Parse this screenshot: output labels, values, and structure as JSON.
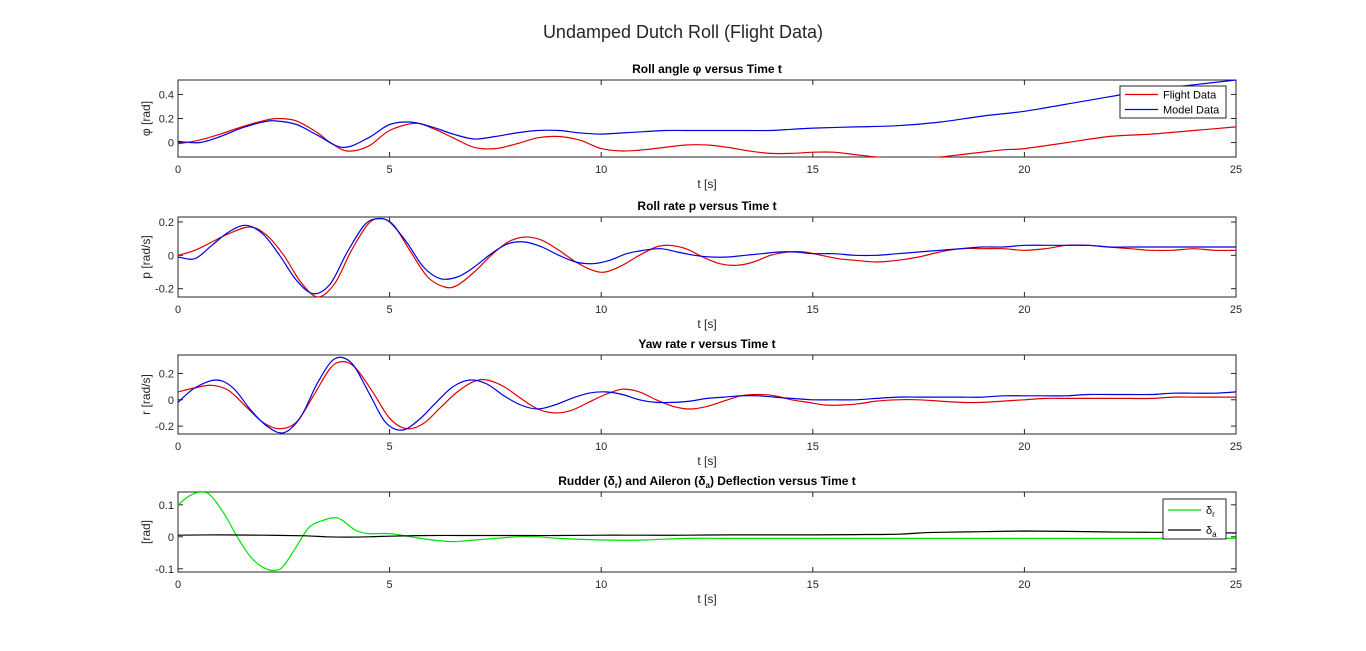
{
  "figure_title": "Undamped Dutch Roll (Flight Data)",
  "colors": {
    "flight": "#e00000",
    "model": "#0000e0",
    "rudder": "#00e000",
    "aileron": "#000000"
  },
  "chart_data": [
    {
      "type": "line",
      "title": "Roll angle φ versus Time t",
      "xlabel": "t [s]",
      "ylabel": "φ [rad]",
      "xlim": [
        0,
        25
      ],
      "ylim": [
        -0.12,
        0.52
      ],
      "xticks": [
        0,
        5,
        10,
        15,
        20,
        25
      ],
      "yticks": [
        -0.0,
        0.2,
        0.4
      ],
      "ytick_labels": [
        "0",
        "0.2",
        "0.4"
      ],
      "legend": "top-right",
      "series": [
        {
          "name": "Flight Data",
          "color": "#e00000",
          "x": [
            0,
            0.5,
            1,
            1.5,
            2,
            2.35,
            2.8,
            3.3,
            3.6,
            4,
            4.5,
            5,
            5.6,
            6,
            6.5,
            7,
            7.5,
            8,
            8.5,
            9,
            9.5,
            10,
            10.5,
            11,
            11.5,
            12,
            12.5,
            13,
            13.5,
            14,
            14.5,
            15,
            15.5,
            16,
            16.5,
            17,
            17.5,
            18,
            18.5,
            19,
            19.5,
            20,
            21,
            22,
            23,
            24,
            25
          ],
          "y": [
            -0.01,
            0.02,
            0.07,
            0.13,
            0.18,
            0.2,
            0.18,
            0.08,
            0.0,
            -0.07,
            -0.03,
            0.1,
            0.16,
            0.12,
            0.04,
            -0.04,
            -0.05,
            -0.01,
            0.04,
            0.05,
            0.02,
            -0.05,
            -0.07,
            -0.06,
            -0.04,
            -0.02,
            -0.02,
            -0.04,
            -0.07,
            -0.09,
            -0.09,
            -0.08,
            -0.08,
            -0.1,
            -0.12,
            -0.13,
            -0.13,
            -0.12,
            -0.1,
            -0.08,
            -0.06,
            -0.05,
            0.0,
            0.05,
            0.07,
            0.1,
            0.13
          ]
        },
        {
          "name": "Model Data",
          "color": "#0000e0",
          "x": [
            0,
            0.5,
            1,
            1.5,
            2,
            2.3,
            2.8,
            3.3,
            3.9,
            4.5,
            5,
            5.5,
            6,
            6.5,
            7,
            7.5,
            8,
            8.5,
            9,
            9.5,
            10,
            10.5,
            11,
            11.5,
            12,
            12.5,
            13,
            13.5,
            14,
            14.5,
            15,
            16,
            17,
            18,
            19,
            20,
            21,
            22,
            23,
            24,
            25
          ],
          "y": [
            0.01,
            0.0,
            0.05,
            0.12,
            0.17,
            0.18,
            0.15,
            0.06,
            -0.04,
            0.04,
            0.15,
            0.17,
            0.13,
            0.07,
            0.03,
            0.05,
            0.08,
            0.1,
            0.1,
            0.08,
            0.07,
            0.08,
            0.09,
            0.1,
            0.1,
            0.1,
            0.1,
            0.1,
            0.1,
            0.11,
            0.12,
            0.13,
            0.14,
            0.17,
            0.22,
            0.26,
            0.32,
            0.38,
            0.44,
            0.48,
            0.52
          ]
        }
      ]
    },
    {
      "type": "line",
      "title": "Roll rate p versus Time t",
      "xlabel": "t [s]",
      "ylabel": "p [rad/s]",
      "xlim": [
        0,
        25
      ],
      "ylim": [
        -0.25,
        0.23
      ],
      "xticks": [
        0,
        5,
        10,
        15,
        20,
        25
      ],
      "yticks": [
        -0.2,
        0,
        0.2
      ],
      "ytick_labels": [
        "-0.2",
        "0",
        "0.2"
      ],
      "legend": "none",
      "series": [
        {
          "name": "Flight Data",
          "color": "#e00000",
          "x": [
            0,
            0.4,
            0.8,
            1.2,
            1.7,
            2.1,
            2.5,
            2.9,
            3.3,
            3.7,
            4.1,
            4.5,
            4.8,
            5.1,
            5.5,
            5.9,
            6.3,
            6.6,
            7,
            7.4,
            7.8,
            8.2,
            8.6,
            9,
            9.4,
            9.8,
            10.1,
            10.5,
            10.9,
            11.3,
            11.6,
            12,
            12.4,
            12.8,
            13.2,
            13.6,
            14,
            14.4,
            14.8,
            15.2,
            15.6,
            16,
            16.5,
            17,
            17.5,
            18,
            18.5,
            19,
            19.5,
            20,
            20.5,
            21,
            21.5,
            22,
            22.5,
            23,
            23.5,
            24,
            24.5,
            25
          ],
          "y": [
            0.0,
            0.03,
            0.08,
            0.13,
            0.17,
            0.12,
            0.0,
            -0.16,
            -0.25,
            -0.17,
            0.03,
            0.19,
            0.22,
            0.18,
            0.02,
            -0.13,
            -0.19,
            -0.18,
            -0.1,
            0.0,
            0.08,
            0.11,
            0.09,
            0.03,
            -0.04,
            -0.09,
            -0.1,
            -0.06,
            0.0,
            0.05,
            0.06,
            0.04,
            -0.01,
            -0.05,
            -0.06,
            -0.04,
            0.0,
            0.02,
            0.02,
            0.0,
            -0.02,
            -0.03,
            -0.04,
            -0.03,
            -0.01,
            0.02,
            0.04,
            0.04,
            0.04,
            0.03,
            0.04,
            0.06,
            0.06,
            0.05,
            0.04,
            0.03,
            0.03,
            0.04,
            0.03,
            0.03
          ]
        },
        {
          "name": "Model Data",
          "color": "#0000e0",
          "x": [
            0,
            0.4,
            0.8,
            1.2,
            1.6,
            2,
            2.4,
            2.8,
            3.2,
            3.6,
            4,
            4.4,
            4.7,
            5,
            5.4,
            5.8,
            6.2,
            6.6,
            7,
            7.4,
            7.8,
            8.2,
            8.6,
            9,
            9.4,
            9.8,
            10.2,
            10.6,
            11,
            11.4,
            11.8,
            12.2,
            12.6,
            13,
            13.4,
            13.8,
            14.2,
            14.6,
            15,
            15.5,
            16,
            16.5,
            17,
            17.5,
            18,
            18.5,
            19,
            19.5,
            20,
            20.5,
            21,
            21.5,
            22,
            22.5,
            23,
            23.5,
            24,
            24.5,
            25
          ],
          "y": [
            -0.01,
            -0.02,
            0.06,
            0.14,
            0.18,
            0.13,
            0.0,
            -0.15,
            -0.23,
            -0.17,
            0.02,
            0.18,
            0.22,
            0.2,
            0.08,
            -0.07,
            -0.14,
            -0.13,
            -0.07,
            0.01,
            0.07,
            0.08,
            0.05,
            0.0,
            -0.04,
            -0.05,
            -0.03,
            0.01,
            0.03,
            0.04,
            0.02,
            0.0,
            -0.01,
            -0.01,
            0.0,
            0.01,
            0.02,
            0.02,
            0.01,
            0.01,
            0.0,
            0.0,
            0.01,
            0.02,
            0.03,
            0.04,
            0.05,
            0.05,
            0.06,
            0.06,
            0.06,
            0.06,
            0.05,
            0.05,
            0.05,
            0.05,
            0.05,
            0.05,
            0.05
          ]
        }
      ]
    },
    {
      "type": "line",
      "title": "Yaw rate r versus Time t",
      "xlabel": "t [s]",
      "ylabel": "r [rad/s]",
      "xlim": [
        0,
        25
      ],
      "ylim": [
        -0.26,
        0.34
      ],
      "xticks": [
        0,
        5,
        10,
        15,
        20,
        25
      ],
      "yticks": [
        -0.2,
        0,
        0.2
      ],
      "ytick_labels": [
        "-0.2",
        "0",
        "0.2"
      ],
      "legend": "none",
      "series": [
        {
          "name": "Flight Data",
          "color": "#e00000",
          "x": [
            0,
            0.4,
            0.8,
            1.2,
            1.6,
            2,
            2.4,
            2.8,
            3.2,
            3.6,
            3.9,
            4.2,
            4.6,
            5,
            5.4,
            5.8,
            6.2,
            6.6,
            7,
            7.3,
            7.7,
            8.1,
            8.5,
            8.9,
            9.3,
            9.7,
            10.1,
            10.5,
            10.9,
            11.3,
            11.7,
            12.1,
            12.5,
            12.9,
            13.3,
            13.7,
            14.1,
            14.5,
            14.9,
            15.3,
            15.7,
            16.1,
            16.5,
            17,
            17.5,
            18,
            18.5,
            19,
            19.5,
            20,
            20.5,
            21,
            21.5,
            22,
            22.5,
            23,
            23.5,
            24,
            24.5,
            25
          ],
          "y": [
            0.06,
            0.09,
            0.11,
            0.07,
            -0.05,
            -0.17,
            -0.22,
            -0.17,
            0.03,
            0.24,
            0.29,
            0.24,
            0.06,
            -0.14,
            -0.22,
            -0.18,
            -0.06,
            0.06,
            0.14,
            0.15,
            0.1,
            0.01,
            -0.07,
            -0.1,
            -0.08,
            -0.02,
            0.04,
            0.08,
            0.06,
            0.0,
            -0.05,
            -0.07,
            -0.05,
            -0.01,
            0.03,
            0.04,
            0.03,
            0.0,
            -0.02,
            -0.04,
            -0.04,
            -0.03,
            -0.01,
            0.0,
            0.0,
            -0.01,
            -0.02,
            -0.02,
            -0.01,
            0.0,
            0.01,
            0.01,
            0.01,
            0.01,
            0.01,
            0.01,
            0.02,
            0.02,
            0.02,
            0.02
          ]
        },
        {
          "name": "Model Data",
          "color": "#0000e0",
          "x": [
            0,
            0.4,
            0.9,
            1.3,
            1.7,
            2.1,
            2.5,
            2.9,
            3.3,
            3.7,
            4.1,
            4.5,
            4.9,
            5.3,
            5.7,
            6.1,
            6.5,
            6.9,
            7.3,
            7.7,
            8.1,
            8.5,
            8.9,
            9.3,
            9.7,
            10.1,
            10.5,
            10.9,
            11.3,
            11.7,
            12.1,
            12.5,
            12.9,
            13.3,
            13.7,
            14.1,
            14.5,
            15,
            15.5,
            16,
            16.5,
            17,
            17.5,
            18,
            18.5,
            19,
            19.5,
            20,
            20.5,
            21,
            21.5,
            22,
            22.5,
            23,
            23.5,
            24,
            24.5,
            25
          ],
          "y": [
            -0.02,
            0.09,
            0.15,
            0.09,
            -0.07,
            -0.2,
            -0.25,
            -0.13,
            0.13,
            0.31,
            0.28,
            0.06,
            -0.17,
            -0.23,
            -0.15,
            -0.02,
            0.1,
            0.15,
            0.12,
            0.03,
            -0.04,
            -0.07,
            -0.04,
            0.01,
            0.05,
            0.06,
            0.04,
            0.0,
            -0.02,
            -0.02,
            -0.01,
            0.01,
            0.02,
            0.03,
            0.03,
            0.02,
            0.01,
            0.0,
            0.0,
            0.0,
            0.01,
            0.02,
            0.02,
            0.02,
            0.02,
            0.02,
            0.03,
            0.03,
            0.03,
            0.03,
            0.04,
            0.04,
            0.04,
            0.04,
            0.05,
            0.05,
            0.05,
            0.06
          ]
        }
      ]
    },
    {
      "type": "line",
      "title": "Rudder (δr) and Aileron (δa) Deflection versus Time t",
      "title_parts": [
        "Rudder (",
        "δ",
        "r",
        ") and Aileron (",
        "δ",
        "a",
        ") Deflection versus Time t"
      ],
      "xlabel": "t [s]",
      "ylabel": "[rad]",
      "xlim": [
        0,
        25
      ],
      "ylim": [
        -0.11,
        0.14
      ],
      "xticks": [
        0,
        5,
        10,
        15,
        20,
        25
      ],
      "yticks": [
        -0.1,
        0,
        0.1
      ],
      "ytick_labels": [
        "-0.1",
        "0",
        "0.1"
      ],
      "legend": "top-right",
      "series": [
        {
          "name": "δr",
          "symbol": "δ",
          "sub": "r",
          "color": "#00e000",
          "x": [
            0,
            0.3,
            0.6,
            0.8,
            1.1,
            1.4,
            1.7,
            2,
            2.3,
            2.5,
            2.8,
            3.1,
            3.4,
            3.7,
            3.9,
            4.2,
            4.5,
            5,
            5.5,
            6,
            6.5,
            7,
            7.5,
            8,
            8.5,
            9,
            10,
            11,
            12,
            13,
            14,
            15,
            16,
            17,
            18,
            19,
            20,
            21,
            22,
            23,
            24,
            25
          ],
          "y": [
            0.1,
            0.13,
            0.14,
            0.125,
            0.07,
            0.0,
            -0.06,
            -0.095,
            -0.105,
            -0.09,
            -0.03,
            0.03,
            0.05,
            0.06,
            0.05,
            0.02,
            0.01,
            0.01,
            0.0,
            -0.01,
            -0.015,
            -0.01,
            -0.005,
            0.0,
            0.0,
            -0.005,
            -0.01,
            -0.01,
            -0.005,
            -0.005,
            -0.005,
            -0.005,
            -0.005,
            -0.005,
            -0.005,
            -0.005,
            -0.005,
            -0.005,
            -0.005,
            -0.005,
            -0.005,
            -0.005
          ]
        },
        {
          "name": "δa",
          "symbol": "δ",
          "sub": "a",
          "color": "#000000",
          "x": [
            0,
            1,
            2,
            3,
            3.5,
            4,
            4.5,
            5,
            6,
            7,
            8,
            9,
            10,
            11,
            12,
            13,
            14,
            15,
            16,
            17,
            17.5,
            18,
            19,
            20,
            21,
            22,
            23,
            24,
            25
          ],
          "y": [
            0.005,
            0.006,
            0.005,
            0.003,
            0.0,
            -0.001,
            0.0,
            0.002,
            0.004,
            0.004,
            0.004,
            0.004,
            0.005,
            0.005,
            0.005,
            0.006,
            0.006,
            0.006,
            0.007,
            0.008,
            0.012,
            0.014,
            0.016,
            0.018,
            0.017,
            0.015,
            0.014,
            0.013,
            0.012
          ]
        }
      ]
    }
  ]
}
